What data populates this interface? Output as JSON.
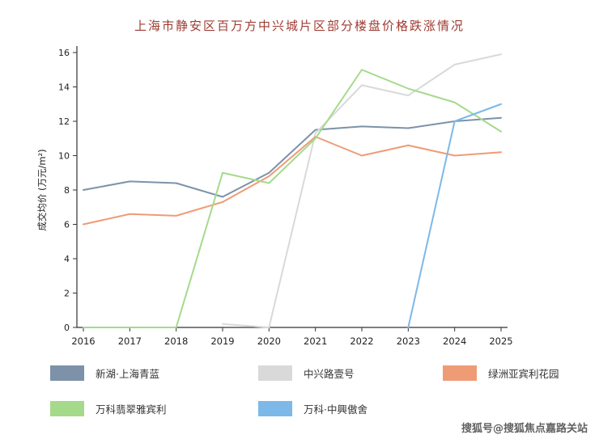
{
  "watermark": {
    "text": "搜狐号@搜狐焦点嘉路关站"
  },
  "colors": {
    "title": "#9d3b31",
    "axis": "#333333",
    "tick_text": "#222222",
    "background": "#ffffff",
    "watermark": "#3f3f3f"
  },
  "chart_data": {
    "type": "line",
    "title": "上海市静安区百万方中兴城片区部分楼盘价格跌涨情况",
    "xlabel": "",
    "ylabel": "成交均价 (万元/m²)",
    "ylim": [
      0,
      16
    ],
    "ytick_step": 2,
    "grid": false,
    "legend_position": "bottom",
    "categories": [
      2016,
      2017,
      2018,
      2019,
      2020,
      2021,
      2022,
      2023,
      2024,
      2025
    ],
    "series": [
      {
        "name": "新湖·上海青蓝",
        "color": "#7d92a9",
        "values": [
          8.0,
          8.5,
          8.4,
          7.6,
          9.0,
          11.5,
          11.7,
          11.6,
          12.0,
          12.2
        ]
      },
      {
        "name": "中兴路壹号",
        "color": "#d9d9d9",
        "values": [
          null,
          null,
          null,
          0.2,
          0,
          11.3,
          14.1,
          13.5,
          15.3,
          15.9
        ]
      },
      {
        "name": "绿洲亚宾利花园",
        "color": "#ef9b76",
        "values": [
          6.0,
          6.6,
          6.5,
          7.3,
          8.8,
          11.1,
          10.0,
          10.6,
          10.0,
          10.2
        ]
      },
      {
        "name": "万科翡翠雅宾利",
        "color": "#a5da8b",
        "values": [
          0,
          0,
          0,
          9.0,
          8.4,
          11.0,
          15.0,
          13.9,
          13.1,
          11.4
        ]
      },
      {
        "name": "万科·中興傲舍",
        "color": "#7cb9e8",
        "values": [
          null,
          null,
          null,
          null,
          null,
          null,
          null,
          0,
          12.0,
          13.0
        ]
      }
    ]
  }
}
